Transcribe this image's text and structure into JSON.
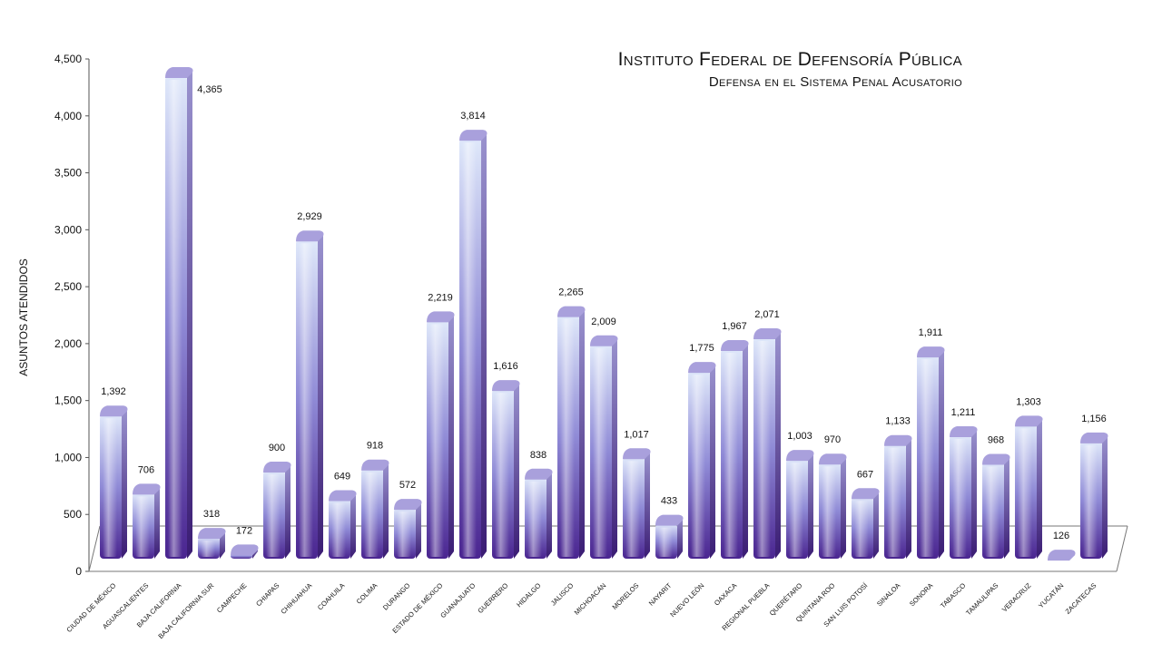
{
  "chart_data": {
    "type": "bar",
    "title": "Instituto Federal de Defensoría Pública",
    "subtitle": "Defensa en el Sistema Penal Acusatorio",
    "xlabel": "",
    "ylabel": "ASUNTOS ATENDIDOS",
    "ylim": [
      0,
      4500
    ],
    "yticks": [
      "0",
      "500",
      "1,000",
      "1,500",
      "2,000",
      "2,500",
      "3,000",
      "3,500",
      "4,000",
      "4,500"
    ],
    "grid": false,
    "colors": {
      "bar_top": "#dfe8fa",
      "bar_mid": "#8f8ad6",
      "bar_bottom": "#4a2590",
      "cap": "#a9a0dc"
    },
    "categories": [
      "CIUDAD DE MÉXICO",
      "AGUASCALIENTES",
      "BAJA CALIFORNIA",
      "BAJA CALIFORNIA SUR",
      "CAMPECHE",
      "CHIAPAS",
      "CHIHUAHUA",
      "COAHUILA",
      "COLIMA",
      "DURANGO",
      "ESTADO DE MÉXICO",
      "GUANAJUATO",
      "GUERRERO",
      "HIDALGO",
      "JALISCO",
      "MICHOACÁN",
      "MORELOS",
      "NAYARIT",
      "NUEVO LEÓN",
      "OAXACA",
      "REGIONAL PUEBLA",
      "QUERÉTARO",
      "QUINTANA ROO",
      "SAN LUIS POTOSÍ",
      "SINALOA",
      "SONORA",
      "TABASCO",
      "TAMAULIPAS",
      "VERACRUZ",
      "YUCATÁN",
      "ZACATECAS"
    ],
    "values": [
      1392,
      706,
      4365,
      318,
      172,
      900,
      2929,
      649,
      918,
      572,
      2219,
      3814,
      1616,
      838,
      2265,
      2009,
      1017,
      433,
      1775,
      1967,
      2071,
      1003,
      970,
      667,
      1133,
      1911,
      1211,
      968,
      1303,
      126,
      1156
    ],
    "value_labels": [
      "1,392",
      "706",
      "4,365",
      "318",
      "172",
      "900",
      "2,929",
      "649",
      "918",
      "572",
      "2,219",
      "3,814",
      "1,616",
      "838",
      "2,265",
      "2,009",
      "1,017",
      "433",
      "1,775",
      "1,967",
      "2,071",
      "1,003",
      "970",
      "667",
      "1,133",
      "1,911",
      "1,211",
      "968",
      "1,303",
      "126",
      "1,156"
    ]
  }
}
